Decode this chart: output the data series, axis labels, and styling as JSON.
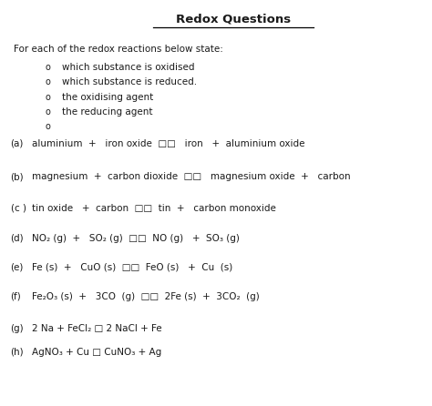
{
  "title": "Redox Questions",
  "background_color": "#ffffff",
  "text_color": "#1a1a1a",
  "intro_line": "For each of the redox reactions below state:",
  "bullets": [
    "which substance is oxidised",
    "which substance is reduced.",
    "the oxidising agent",
    "the reducing agent",
    ""
  ],
  "reactions": [
    {
      "label": "(a)",
      "text": "aluminium  +   iron oxide  □□   iron   +  aluminium oxide"
    },
    {
      "label": "(b)",
      "text": "magnesium  +  carbon dioxide  □□   magnesium oxide  +   carbon"
    },
    {
      "label": "(c )",
      "text": "tin oxide   +  carbon  □□  tin  +   carbon monoxide"
    },
    {
      "label": "(d)",
      "text": "NO₂ (g)  +   SO₂ (g)  □□  NO (g)   +  SO₃ (g)"
    },
    {
      "label": "(e)",
      "text": "Fe (s)  +   CuO (s)  □□  FeO (s)   +  Cu  (s)"
    },
    {
      "label": "(f)",
      "text": "Fe₂O₃ (s)  +   3CO  (g)  □□  2Fe (s)  +  3CO₂  (g)"
    },
    {
      "label": "(g)",
      "text": "2 Na + FeCl₂ □ 2 NaCl + Fe"
    },
    {
      "label": "(h)",
      "text": "AgNO₃ + Cu □ CuNO₃ + Ag"
    }
  ]
}
